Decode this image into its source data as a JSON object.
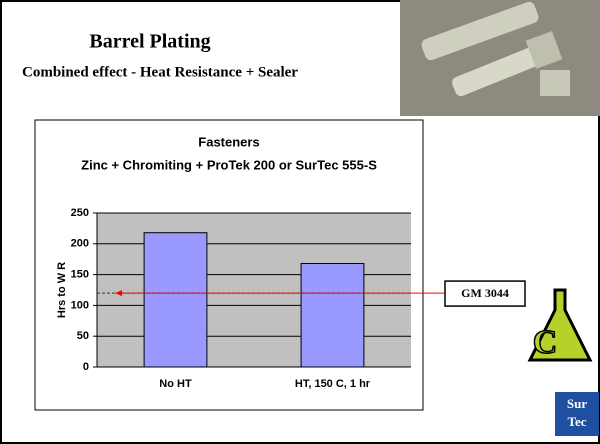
{
  "slide": {
    "title": "Barrel Plating",
    "subtitle": "Combined effect - Heat Resistance + Sealer"
  },
  "chart_data": {
    "type": "bar",
    "title": "Fasteners",
    "subtitle": "Zinc + Chromiting + ProTek 200 or SurTec 555-S",
    "y_label": "Hrs to W R",
    "categories": [
      "No HT",
      "HT, 150 C, 1 hr"
    ],
    "values": [
      218,
      168
    ],
    "color": "#9999ff",
    "ylim": [
      0,
      250
    ],
    "yticks": [
      0,
      50,
      100,
      150,
      200,
      250
    ],
    "grid": true,
    "reference": {
      "label": "GM 3044",
      "value": 120,
      "color": "#ff0000"
    }
  },
  "logo": {
    "line1": "Sur",
    "line2": "Tec"
  }
}
